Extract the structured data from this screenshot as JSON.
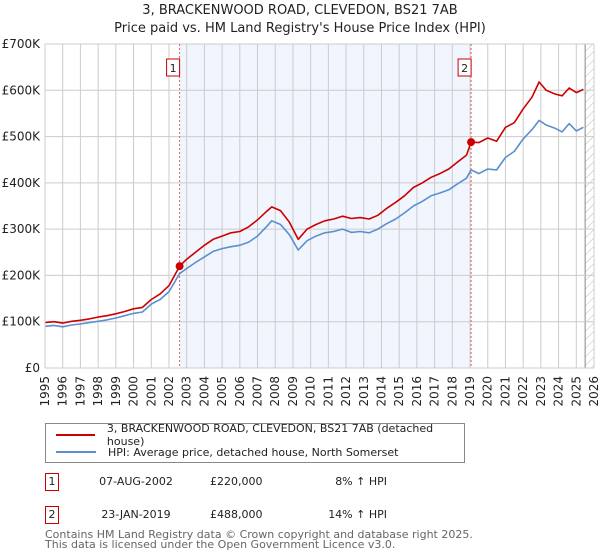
{
  "header": {
    "title": "3, BRACKENWOOD ROAD, CLEVEDON, BS21 7AB",
    "subtitle": "Price paid vs. HM Land Registry's House Price Index (HPI)"
  },
  "chart_data": {
    "type": "line",
    "title": "3, BRACKENWOOD ROAD, CLEVEDON, BS21 7AB",
    "subtitle": "Price paid vs. HM Land Registry's House Price Index (HPI)",
    "xlabel": "",
    "ylabel": "",
    "xlim": [
      1995,
      2026
    ],
    "ylim": [
      0,
      700000
    ],
    "grid": true,
    "legend_position": "bottom",
    "y_ticks": [
      {
        "value": 0,
        "label": "£0"
      },
      {
        "value": 100000,
        "label": "£100K"
      },
      {
        "value": 200000,
        "label": "£200K"
      },
      {
        "value": 300000,
        "label": "£300K"
      },
      {
        "value": 400000,
        "label": "£400K"
      },
      {
        "value": 500000,
        "label": "£500K"
      },
      {
        "value": 600000,
        "label": "£600K"
      },
      {
        "value": 700000,
        "label": "£700K"
      }
    ],
    "x_ticks": [
      "1995",
      "1996",
      "1997",
      "1998",
      "1999",
      "2000",
      "2001",
      "2002",
      "2003",
      "2004",
      "2005",
      "2006",
      "2007",
      "2008",
      "2009",
      "2010",
      "2011",
      "2012",
      "2013",
      "2014",
      "2015",
      "2016",
      "2017",
      "2018",
      "2019",
      "2020",
      "2021",
      "2022",
      "2023",
      "2024",
      "2025",
      "2026"
    ],
    "series": [
      {
        "name": "3, BRACKENWOOD ROAD, CLEVEDON, BS21 7AB (detached house)",
        "color": "#cc0000",
        "x": [
          1995.0,
          1995.5,
          1996.0,
          1996.5,
          1997.0,
          1997.5,
          1998.0,
          1998.5,
          1999.0,
          1999.5,
          2000.0,
          2000.5,
          2001.0,
          2001.5,
          2002.0,
          2002.6,
          2003.0,
          2003.5,
          2004.0,
          2004.5,
          2005.0,
          2005.5,
          2006.0,
          2006.5,
          2007.0,
          2007.5,
          2007.8,
          2008.3,
          2008.8,
          2009.3,
          2009.8,
          2010.3,
          2010.8,
          2011.3,
          2011.8,
          2012.3,
          2012.8,
          2013.3,
          2013.8,
          2014.3,
          2014.8,
          2015.3,
          2015.8,
          2016.3,
          2016.8,
          2017.3,
          2017.8,
          2018.3,
          2018.8,
          2019.06,
          2019.5,
          2020.0,
          2020.5,
          2021.0,
          2021.5,
          2022.0,
          2022.5,
          2022.9,
          2023.3,
          2023.8,
          2024.2,
          2024.6,
          2025.0,
          2025.4
        ],
        "values": [
          98000,
          100000,
          97000,
          101000,
          103000,
          106000,
          110000,
          113000,
          117000,
          122000,
          128000,
          131000,
          148000,
          160000,
          178000,
          220000,
          235000,
          250000,
          265000,
          278000,
          285000,
          292000,
          295000,
          305000,
          320000,
          338000,
          348000,
          340000,
          315000,
          278000,
          300000,
          310000,
          318000,
          322000,
          328000,
          323000,
          325000,
          322000,
          330000,
          345000,
          358000,
          372000,
          390000,
          400000,
          412000,
          420000,
          430000,
          445000,
          460000,
          488000,
          487000,
          497000,
          490000,
          520000,
          530000,
          560000,
          585000,
          618000,
          600000,
          592000,
          588000,
          605000,
          595000,
          602000
        ]
      },
      {
        "name": "HPI: Average price, detached house, North Somerset",
        "color": "#5b8fcf",
        "x": [
          1995.0,
          1995.5,
          1996.0,
          1996.5,
          1997.0,
          1997.5,
          1998.0,
          1998.5,
          1999.0,
          1999.5,
          2000.0,
          2000.5,
          2001.0,
          2001.5,
          2002.0,
          2002.6,
          2003.0,
          2003.5,
          2004.0,
          2004.5,
          2005.0,
          2005.5,
          2006.0,
          2006.5,
          2007.0,
          2007.5,
          2007.8,
          2008.3,
          2008.8,
          2009.3,
          2009.8,
          2010.3,
          2010.8,
          2011.3,
          2011.8,
          2012.3,
          2012.8,
          2013.3,
          2013.8,
          2014.3,
          2014.8,
          2015.3,
          2015.8,
          2016.3,
          2016.8,
          2017.3,
          2017.8,
          2018.3,
          2018.8,
          2019.06,
          2019.5,
          2020.0,
          2020.5,
          2021.0,
          2021.5,
          2022.0,
          2022.5,
          2022.9,
          2023.3,
          2023.8,
          2024.2,
          2024.6,
          2025.0,
          2025.4
        ],
        "values": [
          90000,
          92000,
          89000,
          93000,
          95000,
          98000,
          101000,
          104000,
          108000,
          113000,
          118000,
          121000,
          138000,
          148000,
          165000,
          204000,
          215000,
          228000,
          240000,
          252000,
          258000,
          262000,
          265000,
          272000,
          285000,
          305000,
          318000,
          310000,
          288000,
          255000,
          275000,
          285000,
          292000,
          295000,
          300000,
          293000,
          295000,
          292000,
          300000,
          312000,
          322000,
          335000,
          350000,
          360000,
          372000,
          378000,
          385000,
          398000,
          410000,
          428000,
          420000,
          430000,
          428000,
          455000,
          468000,
          495000,
          515000,
          535000,
          525000,
          518000,
          510000,
          528000,
          512000,
          520000
        ]
      }
    ],
    "annotations": [
      {
        "label": "1",
        "x": 2002.6,
        "value": 220000
      },
      {
        "label": "2",
        "x": 2019.06,
        "value": 488000
      }
    ],
    "shaded_region": {
      "from": 2002.6,
      "to": 2019.06
    },
    "hatched_region": {
      "from": 2025.5,
      "to": 2026
    }
  },
  "legend": {
    "items": [
      {
        "label": "3, BRACKENWOOD ROAD, CLEVEDON, BS21 7AB (detached house)",
        "color": "#cc0000"
      },
      {
        "label": "HPI: Average price, detached house, North Somerset",
        "color": "#5b8fcf"
      }
    ]
  },
  "sales": [
    {
      "badge": "1",
      "date": "07-AUG-2002",
      "price": "£220,000",
      "hpi": "8% ↑ HPI"
    },
    {
      "badge": "2",
      "date": "23-JAN-2019",
      "price": "£488,000",
      "hpi": "14% ↑ HPI"
    }
  ],
  "footer": {
    "line1": "Contains HM Land Registry data © Crown copyright and database right 2025.",
    "line2": "This data is licensed under the Open Government Licence v3.0."
  }
}
